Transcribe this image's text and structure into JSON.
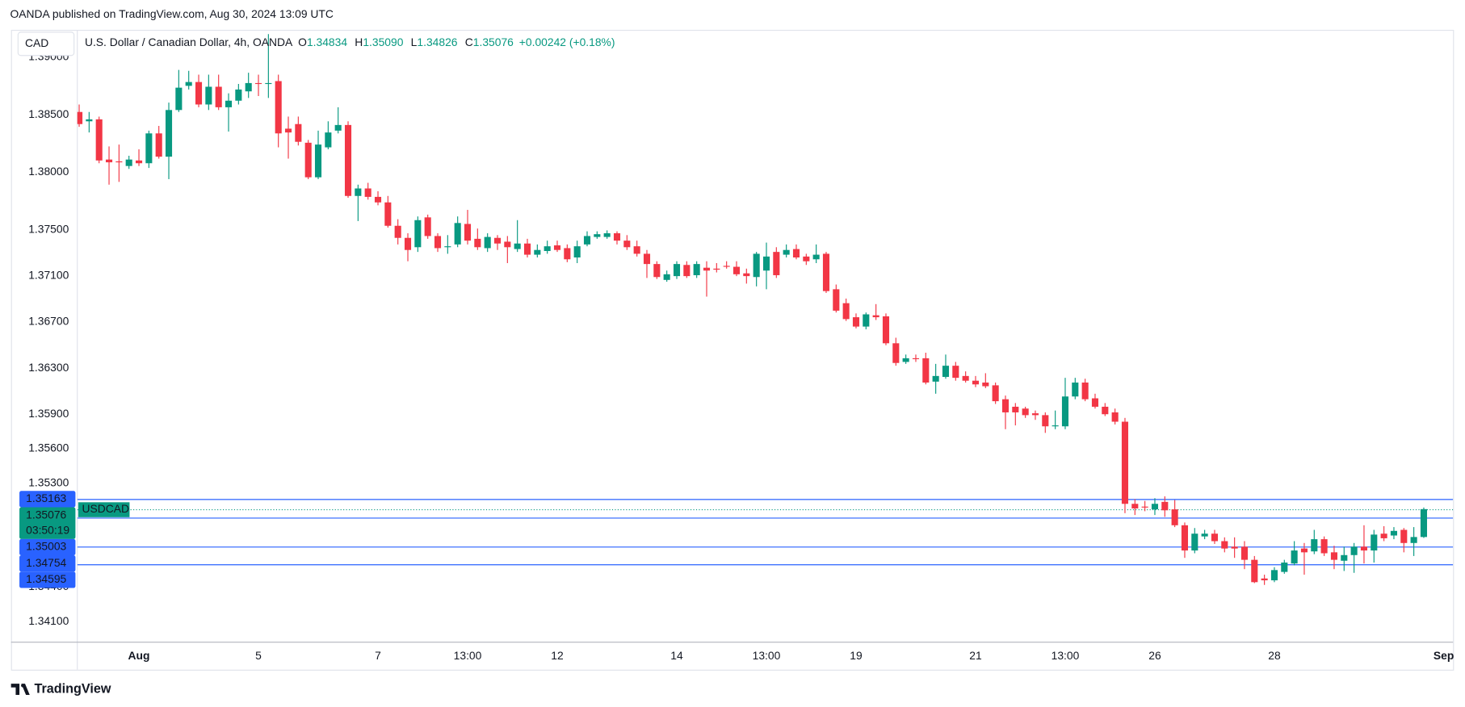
{
  "chart_data": {
    "type": "candlestick",
    "header": "OANDA published on TradingView.com, Aug 30, 2024 13:09 UTC",
    "currency": "CAD",
    "legend": {
      "symbol": "U.S. Dollar / Canadian Dollar, 4h, OANDA",
      "ohlc": [
        {
          "key": "O",
          "value": "1.34834"
        },
        {
          "key": "H",
          "value": "1.35090"
        },
        {
          "key": "L",
          "value": "1.34826"
        },
        {
          "key": "C",
          "value": "1.35076"
        }
      ],
      "change": "+0.00242 (+0.18%)"
    },
    "footer": "TradingView",
    "up_color": "#089981",
    "down_color": "#f23645",
    "grid": false,
    "ylim": [
      1.33925,
      1.39237
    ],
    "yticks": [
      {
        "value": 1.341,
        "label": "1.34100"
      },
      {
        "value": 1.344,
        "label": "1.34400"
      },
      {
        "value": 1.353,
        "label": "1.35300"
      },
      {
        "value": 1.356,
        "label": "1.35600"
      },
      {
        "value": 1.359,
        "label": "1.35900"
      },
      {
        "value": 1.363,
        "label": "1.36300"
      },
      {
        "value": 1.367,
        "label": "1.36700"
      },
      {
        "value": 1.371,
        "label": "1.37100"
      },
      {
        "value": 1.375,
        "label": "1.37500"
      },
      {
        "value": 1.38,
        "label": "1.38000"
      },
      {
        "value": 1.385,
        "label": "1.38500"
      },
      {
        "value": 1.39,
        "label": "1.39000"
      }
    ],
    "price_lines": [
      {
        "value": 1.35163,
        "color": "#2962ff"
      },
      {
        "value": 1.35003,
        "color": "#2962ff"
      },
      {
        "value": 1.34754,
        "color": "#2962ff"
      },
      {
        "value": 1.34595,
        "color": "#2962ff"
      }
    ],
    "last_price": {
      "value": 1.35076,
      "symbol": "USDCAD",
      "countdown": "03:50:19",
      "color": "#089981"
    },
    "categories": [
      null,
      null,
      null,
      null,
      null,
      null,
      "Aug",
      null,
      null,
      null,
      null,
      null,
      null,
      null,
      null,
      null,
      null,
      null,
      "5",
      null,
      null,
      null,
      null,
      null,
      null,
      null,
      null,
      null,
      null,
      null,
      "7",
      null,
      null,
      null,
      null,
      null,
      null,
      null,
      null,
      "13:00",
      null,
      null,
      null,
      null,
      null,
      null,
      null,
      null,
      "12",
      null,
      null,
      null,
      null,
      null,
      null,
      null,
      null,
      null,
      null,
      null,
      "14",
      null,
      null,
      null,
      null,
      null,
      null,
      null,
      null,
      "13:00",
      null,
      null,
      null,
      null,
      null,
      null,
      null,
      null,
      "19",
      null,
      null,
      null,
      null,
      null,
      null,
      null,
      null,
      null,
      null,
      null,
      "21",
      null,
      null,
      null,
      null,
      null,
      null,
      null,
      null,
      "13:00",
      null,
      null,
      null,
      null,
      null,
      null,
      null,
      null,
      "26",
      null,
      null,
      null,
      null,
      null,
      null,
      null,
      null,
      null,
      null,
      null,
      "28",
      null,
      null,
      null,
      null,
      null,
      null,
      null,
      null,
      null,
      null,
      null,
      null,
      null,
      null,
      null,
      null,
      "Sep"
    ],
    "open": [
      1.38524,
      1.38443,
      1.3846,
      1.38111,
      1.38095,
      1.38055,
      1.38103,
      1.38079,
      1.38338,
      1.38136,
      1.38541,
      1.38751,
      1.38784,
      1.38589,
      1.38743,
      1.38565,
      1.38622,
      1.38703,
      1.38775,
      1.38767,
      1.38792,
      1.38379,
      1.38419,
      1.38257,
      1.37957,
      1.38217,
      1.38362,
      1.38411,
      1.37795,
      1.3786,
      1.37787,
      1.37739,
      1.37536,
      1.37431,
      1.3735,
      1.37609,
      1.37447,
      1.3735,
      1.37374,
      1.37552,
      1.37423,
      1.37342,
      1.37431,
      1.37398,
      1.37334,
      1.37382,
      1.37285,
      1.37317,
      1.37366,
      1.37342,
      1.37261,
      1.37374,
      1.37439,
      1.37439,
      1.37471,
      1.37407,
      1.37358,
      1.37293,
      1.37204,
      1.37066,
      1.37099,
      1.37196,
      1.37107,
      1.37172,
      1.37164,
      1.37188,
      1.3718,
      1.37123,
      1.37091,
      1.37147,
      1.37309,
      1.37285,
      1.37334,
      1.37269,
      1.37245,
      1.37293,
      1.36985,
      1.36864,
      1.36742,
      1.36661,
      1.36759,
      1.3675,
      1.36516,
      1.36354,
      1.36386,
      1.36386,
      1.36183,
      1.36224,
      1.36321,
      1.36232,
      1.36191,
      1.36175,
      1.36151,
      1.3603,
      1.35965,
      1.35949,
      1.35908,
      1.35892,
      1.35795,
      1.35795,
      1.36054,
      1.36175,
      1.36038,
      1.35965,
      1.35916,
      1.35835,
      1.35122,
      1.35098,
      1.35074,
      1.35139,
      1.35074,
      1.34936,
      1.34717,
      1.34839,
      1.34863,
      1.34798,
      1.3475,
      1.3475,
      1.34636,
      1.34474,
      1.34458,
      1.34531,
      1.34604,
      1.34734,
      1.34709,
      1.34815,
      1.34701,
      1.34628,
      1.34677,
      1.3475,
      1.34717,
      1.34863,
      1.34847,
      1.34896,
      1.34782,
      1.34834,
      null,
      null
    ],
    "high": [
      1.38589,
      1.38524,
      1.38484,
      1.38225,
      1.38241,
      1.38144,
      1.382,
      1.38362,
      1.38403,
      1.38605,
      1.38889,
      1.38881,
      1.38848,
      1.38848,
      1.38848,
      1.38686,
      1.38767,
      1.38865,
      1.38848,
      1.392,
      1.38848,
      1.38484,
      1.38484,
      1.38281,
      1.38362,
      1.38443,
      1.38565,
      1.38443,
      1.37893,
      1.37909,
      1.37836,
      1.37795,
      1.37593,
      1.37471,
      1.37617,
      1.37633,
      1.37471,
      1.37455,
      1.37617,
      1.37674,
      1.37512,
      1.37471,
      1.37455,
      1.37447,
      1.37585,
      1.37423,
      1.37374,
      1.37407,
      1.37407,
      1.37374,
      1.37407,
      1.37488,
      1.37488,
      1.37496,
      1.37488,
      1.37455,
      1.37407,
      1.37326,
      1.37228,
      1.37147,
      1.37228,
      1.37228,
      1.37228,
      1.37228,
      1.37212,
      1.37228,
      1.37228,
      1.37164,
      1.37309,
      1.3739,
      1.3735,
      1.37374,
      1.37374,
      1.37293,
      1.37374,
      1.37309,
      1.37026,
      1.36904,
      1.36775,
      1.36783,
      1.36856,
      1.36775,
      1.36564,
      1.36418,
      1.36418,
      1.36434,
      1.36337,
      1.36418,
      1.36354,
      1.36272,
      1.36232,
      1.36256,
      1.36175,
      1.36062,
      1.35997,
      1.35965,
      1.35932,
      1.35916,
      1.35932,
      1.36216,
      1.36216,
      1.36208,
      1.36078,
      1.35997,
      1.35949,
      1.35868,
      1.35163,
      1.35147,
      1.35171,
      1.35187,
      1.35155,
      1.3496,
      1.34912,
      1.34896,
      1.34896,
      1.34831,
      1.34831,
      1.34798,
      1.34669,
      1.34507,
      1.34572,
      1.34636,
      1.34798,
      1.34782,
      1.34896,
      1.34839,
      1.34758,
      1.3475,
      1.34782,
      1.34936,
      1.34896,
      1.34928,
      1.3492,
      1.34912,
      1.3492,
      1.3509,
      null,
      null
    ],
    "low": [
      1.38395,
      1.38346,
      1.38079,
      1.37893,
      1.37917,
      1.3803,
      1.38055,
      1.38038,
      1.38119,
      1.37941,
      1.38524,
      1.38719,
      1.38565,
      1.38541,
      1.38541,
      1.38354,
      1.38589,
      1.38646,
      1.38662,
      1.38646,
      1.38217,
      1.38119,
      1.38233,
      1.37941,
      1.37941,
      1.382,
      1.38338,
      1.37779,
      1.37577,
      1.37763,
      1.37714,
      1.3752,
      1.37374,
      1.37228,
      1.37309,
      1.37423,
      1.37309,
      1.37293,
      1.3735,
      1.37374,
      1.37326,
      1.37309,
      1.37326,
      1.37212,
      1.37309,
      1.37261,
      1.37261,
      1.37293,
      1.37309,
      1.3722,
      1.37212,
      1.37358,
      1.37423,
      1.37423,
      1.37374,
      1.37326,
      1.37269,
      1.37083,
      1.37074,
      1.3705,
      1.37074,
      1.37083,
      1.37083,
      1.36921,
      1.37131,
      1.37164,
      1.37099,
      1.37034,
      1.3701,
      1.36985,
      1.37083,
      1.37261,
      1.37245,
      1.37196,
      1.37212,
      1.36953,
      1.36783,
      1.3671,
      1.36645,
      1.36637,
      1.36718,
      1.36499,
      1.36321,
      1.36337,
      1.36354,
      1.36159,
      1.36078,
      1.36208,
      1.36191,
      1.36175,
      1.36135,
      1.36127,
      1.35989,
      1.3577,
      1.35803,
      1.35868,
      1.35851,
      1.35738,
      1.3577,
      1.3577,
      1.3603,
      1.36013,
      1.35949,
      1.35884,
      1.35811,
      1.35041,
      1.35025,
      1.35058,
      1.35025,
      1.35009,
      1.3492,
      1.34653,
      1.34693,
      1.34815,
      1.34774,
      1.34701,
      1.34653,
      1.34555,
      1.34434,
      1.34418,
      1.34442,
      1.34515,
      1.34588,
      1.34507,
      1.34685,
      1.34669,
      1.34555,
      1.34539,
      1.34523,
      1.34604,
      1.34612,
      1.34798,
      1.34815,
      1.34701,
      1.34669,
      1.34826,
      null,
      null
    ],
    "close": [
      1.38419,
      1.3846,
      1.38103,
      1.38087,
      1.38087,
      1.38111,
      1.38079,
      1.38338,
      1.38136,
      1.38541,
      1.38735,
      1.38784,
      1.38589,
      1.38743,
      1.38565,
      1.38622,
      1.38719,
      1.38775,
      1.38767,
      1.38775,
      1.38338,
      1.38346,
      1.38265,
      1.37957,
      1.38241,
      1.38346,
      1.38411,
      1.37795,
      1.3786,
      1.37787,
      1.37739,
      1.37536,
      1.37431,
      1.37326,
      1.37585,
      1.37447,
      1.37342,
      1.37358,
      1.3756,
      1.37407,
      1.3735,
      1.37439,
      1.37382,
      1.3735,
      1.37382,
      1.37285,
      1.37326,
      1.37358,
      1.37326,
      1.37245,
      1.37358,
      1.37447,
      1.37463,
      1.37471,
      1.37407,
      1.3735,
      1.37293,
      1.37204,
      1.37091,
      1.37115,
      1.37204,
      1.37099,
      1.37204,
      1.37147,
      1.37155,
      1.3718,
      1.37115,
      1.37099,
      1.37293,
      1.37269,
      1.37107,
      1.37326,
      1.37261,
      1.37228,
      1.37285,
      1.36969,
      1.36799,
      1.36726,
      1.36661,
      1.36767,
      1.36742,
      1.36516,
      1.36345,
      1.36386,
      1.36383,
      1.36175,
      1.36232,
      1.36321,
      1.36216,
      1.36191,
      1.36159,
      1.36143,
      1.36013,
      1.35916,
      1.35916,
      1.35892,
      1.35892,
      1.35795,
      1.35803,
      1.36054,
      1.36175,
      1.3603,
      1.35965,
      1.359,
      1.35835,
      1.35122,
      1.35082,
      1.35095,
      1.35122,
      1.35066,
      1.34936,
      1.34717,
      1.34863,
      1.34863,
      1.34798,
      1.34734,
      1.34734,
      1.34636,
      1.34442,
      1.34458,
      1.34547,
      1.34612,
      1.34717,
      1.34701,
      1.34815,
      1.34693,
      1.34636,
      1.34677,
      1.3475,
      1.34717,
      1.34855,
      1.34823,
      1.34887,
      1.34782,
      1.34834,
      1.35076,
      null,
      null
    ]
  }
}
